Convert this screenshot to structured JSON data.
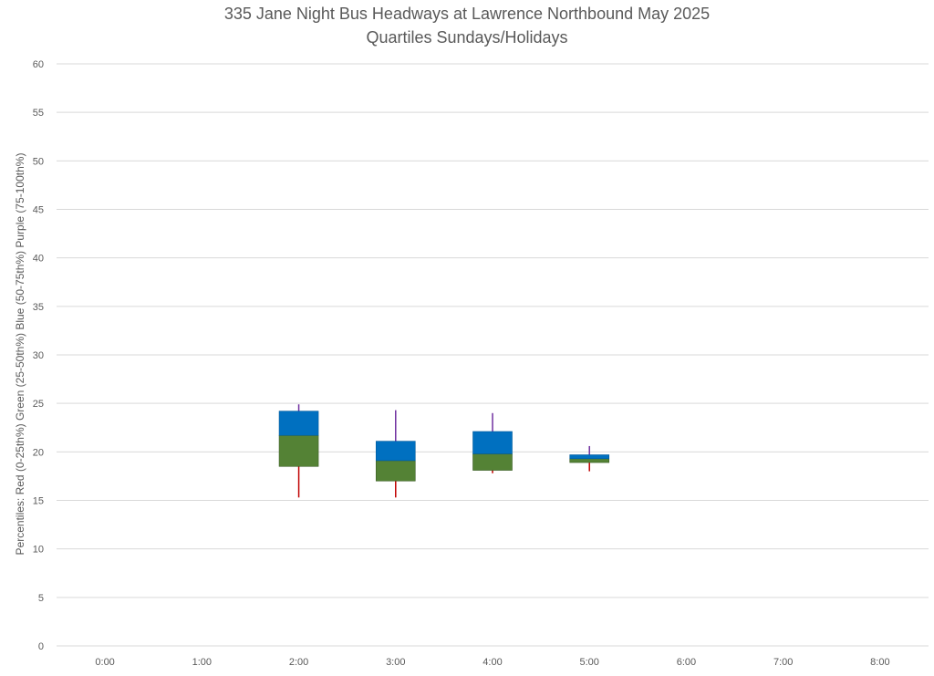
{
  "chart_data": {
    "type": "box",
    "title": "335 Jane Night Bus Headways at Lawrence Northbound May 2025",
    "subtitle": "Quartiles Sundays/Holidays",
    "ylabel": "Percentiles:  Red (0-25th%)  Green (25-50th%)  Blue (50-75th%)  Purple (75-100th%)",
    "ylim": [
      0,
      60
    ],
    "yticks": [
      0,
      5,
      10,
      15,
      20,
      25,
      30,
      35,
      40,
      45,
      50,
      55,
      60
    ],
    "categories": [
      "0:00",
      "1:00",
      "2:00",
      "3:00",
      "4:00",
      "5:00",
      "6:00",
      "7:00",
      "8:00"
    ],
    "grid": true,
    "colors": {
      "low_whisker": "#c00000",
      "lower_box": "#548235",
      "upper_box": "#0070c0",
      "high_whisker": "#7030a0",
      "grid": "#d9d9d9",
      "text": "#595959"
    },
    "boxes": [
      {
        "category": "2:00",
        "min": 15.3,
        "q1": 18.5,
        "median": 21.7,
        "q3": 24.2,
        "max": 24.9
      },
      {
        "category": "3:00",
        "min": 15.3,
        "q1": 17.0,
        "median": 19.1,
        "q3": 21.1,
        "max": 24.3
      },
      {
        "category": "4:00",
        "min": 17.8,
        "q1": 18.1,
        "median": 19.8,
        "q3": 22.1,
        "max": 24.0
      },
      {
        "category": "5:00",
        "min": 18.0,
        "q1": 18.9,
        "median": 19.3,
        "q3": 19.7,
        "max": 20.6
      }
    ]
  }
}
